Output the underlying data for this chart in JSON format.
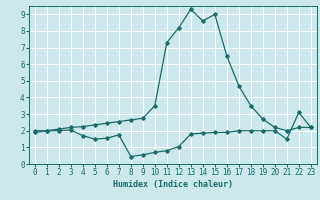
{
  "title": "",
  "xlabel": "Humidex (Indice chaleur)",
  "ylabel": "",
  "bg_color": "#cce8ec",
  "grid_color": "#ffffff",
  "line_color": "#1a6b6b",
  "xlim": [
    -0.5,
    23.5
  ],
  "ylim": [
    0,
    9.5
  ],
  "xticks": [
    0,
    1,
    2,
    3,
    4,
    5,
    6,
    7,
    8,
    9,
    10,
    11,
    12,
    13,
    14,
    15,
    16,
    17,
    18,
    19,
    20,
    21,
    22,
    23
  ],
  "yticks": [
    0,
    1,
    2,
    3,
    4,
    5,
    6,
    7,
    8,
    9
  ],
  "line1_x": [
    0,
    1,
    2,
    3,
    4,
    5,
    6,
    7,
    8,
    9,
    10,
    11,
    12,
    13,
    14,
    15,
    16,
    17,
    18,
    19,
    20,
    21,
    22,
    23
  ],
  "line1_y": [
    2.0,
    2.0,
    2.1,
    2.2,
    2.25,
    2.35,
    2.45,
    2.55,
    2.65,
    2.75,
    3.5,
    7.3,
    8.2,
    9.3,
    8.6,
    9.0,
    6.5,
    4.7,
    3.5,
    2.7,
    2.2,
    2.0,
    2.2,
    2.2
  ],
  "line2_x": [
    0,
    1,
    2,
    3,
    4,
    5,
    6,
    7,
    8,
    9,
    10,
    11,
    12,
    13,
    14,
    15,
    16,
    17,
    18,
    19,
    20,
    21,
    22,
    23
  ],
  "line2_y": [
    1.9,
    2.0,
    2.0,
    2.05,
    1.7,
    1.5,
    1.55,
    1.75,
    0.45,
    0.55,
    0.7,
    0.8,
    1.05,
    1.8,
    1.85,
    1.9,
    1.9,
    2.0,
    2.0,
    2.0,
    2.0,
    1.5,
    3.1,
    2.2
  ],
  "marker_size": 1.8,
  "line_width": 0.9,
  "tick_labelsize": 5.5,
  "xlabel_fontsize": 6.0
}
